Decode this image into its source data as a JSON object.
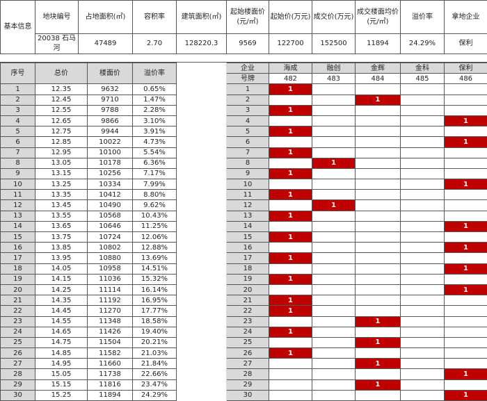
{
  "info": {
    "row_label": "基本信息",
    "headers": [
      "地块编号",
      "占地面积(㎡)",
      "容积率",
      "建筑面积(㎡)",
      "起始楼面价(元/㎡)",
      "起始价(万元)",
      "成交价(万元)",
      "成交楼面均价(元/㎡)",
      "溢价率",
      "拿地企业"
    ],
    "values": [
      "20038 石马河",
      "47489",
      "2.70",
      "128220.3",
      "9569",
      "122700",
      "152500",
      "11894",
      "24.29%",
      "保利"
    ]
  },
  "rounds_table": {
    "headers": [
      "序号",
      "总价",
      "楼面价",
      "溢价率"
    ],
    "rows": [
      [
        "1",
        "12.35",
        "9632",
        "0.65%"
      ],
      [
        "2",
        "12.45",
        "9710",
        "1.47%"
      ],
      [
        "3",
        "12.55",
        "9788",
        "2.28%"
      ],
      [
        "4",
        "12.65",
        "9866",
        "3.10%"
      ],
      [
        "5",
        "12.75",
        "9944",
        "3.91%"
      ],
      [
        "6",
        "12.85",
        "10022",
        "4.73%"
      ],
      [
        "7",
        "12.95",
        "10100",
        "5.54%"
      ],
      [
        "8",
        "13.05",
        "10178",
        "6.36%"
      ],
      [
        "9",
        "13.15",
        "10256",
        "7.17%"
      ],
      [
        "10",
        "13.25",
        "10334",
        "7.99%"
      ],
      [
        "11",
        "13.35",
        "10412",
        "8.80%"
      ],
      [
        "12",
        "13.45",
        "10490",
        "9.62%"
      ],
      [
        "13",
        "13.55",
        "10568",
        "10.43%"
      ],
      [
        "14",
        "13.65",
        "10646",
        "11.25%"
      ],
      [
        "15",
        "13.75",
        "10724",
        "12.06%"
      ],
      [
        "16",
        "13.85",
        "10802",
        "12.88%"
      ],
      [
        "17",
        "13.95",
        "10880",
        "13.69%"
      ],
      [
        "18",
        "14.05",
        "10958",
        "14.51%"
      ],
      [
        "19",
        "14.15",
        "11036",
        "15.32%"
      ],
      [
        "20",
        "14.25",
        "11114",
        "16.14%"
      ],
      [
        "21",
        "14.35",
        "11192",
        "16.95%"
      ],
      [
        "22",
        "14.45",
        "11270",
        "17.77%"
      ],
      [
        "23",
        "14.55",
        "11348",
        "18.58%"
      ],
      [
        "24",
        "14.65",
        "11426",
        "19.40%"
      ],
      [
        "25",
        "14.75",
        "11504",
        "20.21%"
      ],
      [
        "26",
        "14.85",
        "11582",
        "21.03%"
      ],
      [
        "27",
        "14.95",
        "11660",
        "21.84%"
      ],
      [
        "28",
        "15.05",
        "11738",
        "22.66%"
      ],
      [
        "29",
        "15.15",
        "11816",
        "23.47%"
      ],
      [
        "30",
        "15.25",
        "11894",
        "24.29%"
      ]
    ]
  },
  "bids_table": {
    "company_label": "企业",
    "number_label": "号牌",
    "companies": [
      {
        "name": "海成",
        "number": "482"
      },
      {
        "name": "融创",
        "number": "483"
      },
      {
        "name": "金辉",
        "number": "484"
      },
      {
        "name": "金科",
        "number": "485"
      },
      {
        "name": "保利",
        "number": "486"
      }
    ],
    "mark": "1",
    "mark_color": "#c00000",
    "bidder_by_round": [
      "482",
      "484",
      "482",
      "486",
      "482",
      "486",
      "482",
      "483",
      "482",
      "486",
      "482",
      "483",
      "482",
      "486",
      "482",
      "486",
      "482",
      "486",
      "482",
      "486",
      "482",
      "482",
      "484",
      "482",
      "484",
      "482",
      "484",
      "486",
      "484",
      "486"
    ]
  }
}
